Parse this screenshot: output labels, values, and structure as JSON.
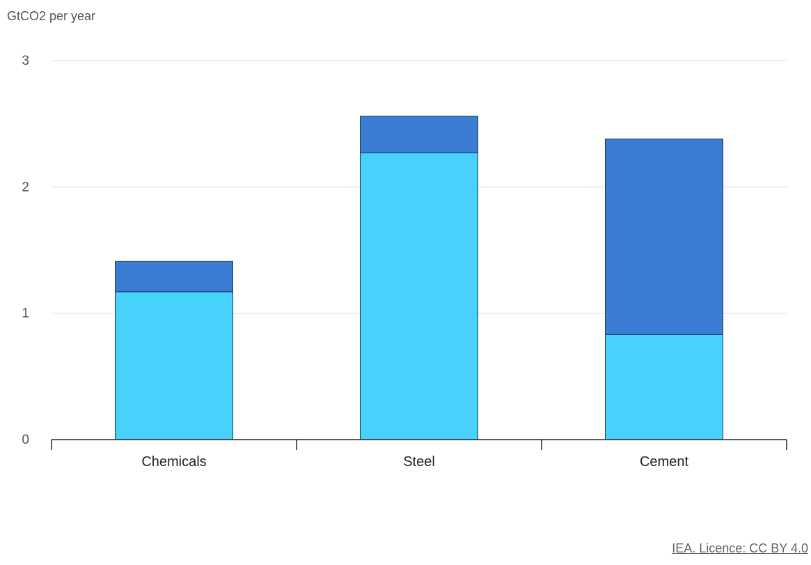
{
  "chart_data": {
    "type": "bar",
    "stacked": true,
    "ylabel": "GtCO2 per year",
    "ylim": [
      0,
      3
    ],
    "yticks": [
      0,
      1,
      2,
      3
    ],
    "grid": true,
    "categories": [
      "Chemicals",
      "Steel",
      "Cement"
    ],
    "series": [
      {
        "values": [
          1.17,
          2.27,
          0.83
        ],
        "color": "#46d2fb"
      },
      {
        "values": [
          0.24,
          0.29,
          1.55
        ],
        "color": "#3b7dd4"
      }
    ]
  },
  "footer": {
    "credit": "IEA. Licence: CC BY 4.0"
  }
}
